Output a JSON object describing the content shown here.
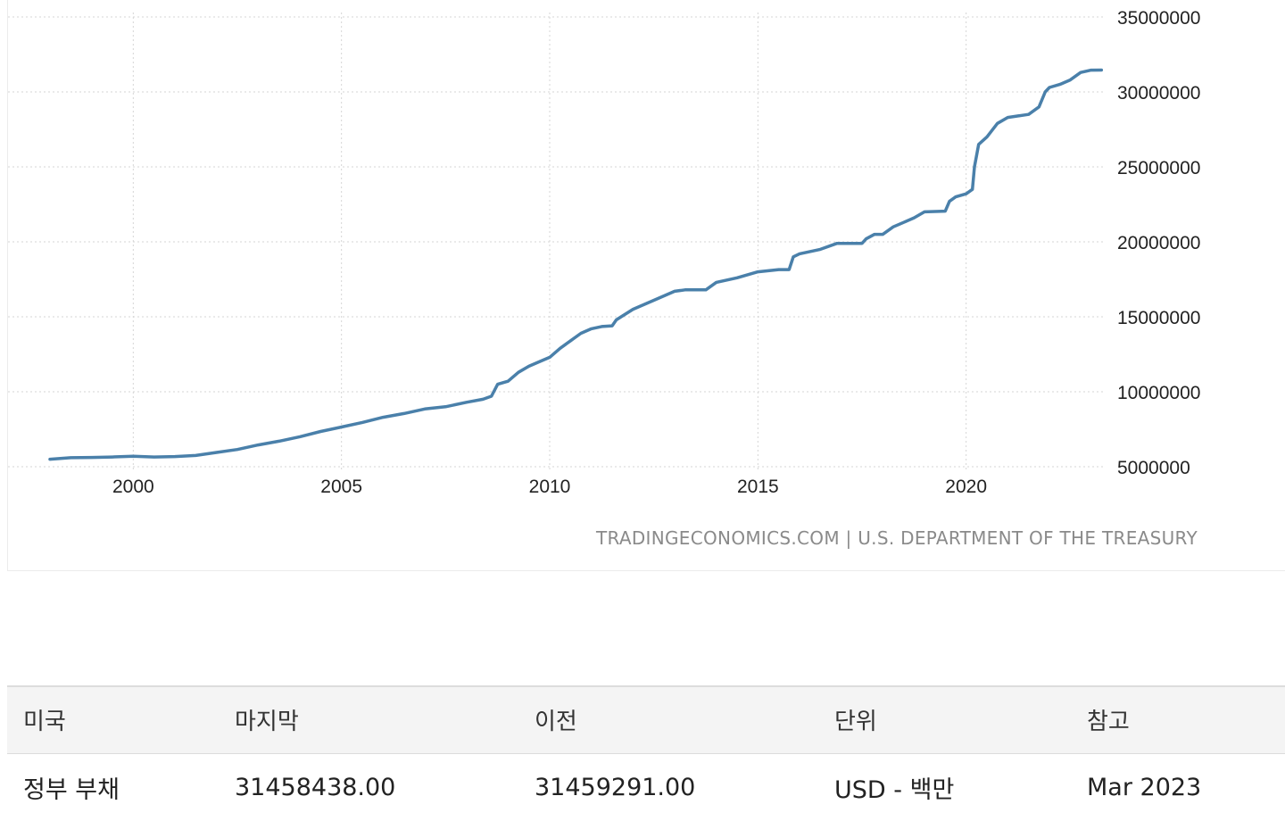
{
  "chart_data": {
    "type": "line",
    "series": [
      {
        "x": [
          1998.0,
          1998.5,
          1999.0,
          1999.5,
          2000.0,
          2000.5,
          2001.0,
          2001.5,
          2002.0,
          2002.5,
          2003.0,
          2003.5,
          2004.0,
          2004.5,
          2005.0,
          2005.5,
          2006.0,
          2006.5,
          2007.0,
          2007.5,
          2008.0,
          2008.4,
          2008.6,
          2008.75,
          2009.0,
          2009.25,
          2009.5,
          2009.75,
          2010.0,
          2010.25,
          2010.5,
          2010.75,
          2011.0,
          2011.25,
          2011.5,
          2011.6,
          2012.0,
          2012.5,
          2013.0,
          2013.25,
          2013.75,
          2014.0,
          2014.5,
          2015.0,
          2015.5,
          2015.75,
          2015.85,
          2016.0,
          2016.5,
          2016.9,
          2017.2,
          2017.5,
          2017.6,
          2017.8,
          2018.0,
          2018.25,
          2018.5,
          2018.75,
          2019.0,
          2019.5,
          2019.6,
          2019.75,
          2020.0,
          2020.15,
          2020.2,
          2020.3,
          2020.5,
          2020.75,
          2021.0,
          2021.25,
          2021.5,
          2021.75,
          2021.9,
          2022.0,
          2022.25,
          2022.5,
          2022.75,
          2023.0,
          2023.25
        ],
        "values": [
          5500000,
          5600000,
          5620000,
          5650000,
          5700000,
          5650000,
          5680000,
          5750000,
          5950000,
          6150000,
          6450000,
          6700000,
          7000000,
          7350000,
          7650000,
          7950000,
          8300000,
          8550000,
          8850000,
          9000000,
          9300000,
          9500000,
          9700000,
          10500000,
          10700000,
          11300000,
          11700000,
          12000000,
          12300000,
          12900000,
          13400000,
          13900000,
          14200000,
          14350000,
          14400000,
          14800000,
          15500000,
          16100000,
          16700000,
          16800000,
          16800000,
          17300000,
          17600000,
          18000000,
          18150000,
          18150000,
          19000000,
          19200000,
          19500000,
          19900000,
          19900000,
          19900000,
          20200000,
          20500000,
          20500000,
          21000000,
          21300000,
          21600000,
          22000000,
          22050000,
          22700000,
          23000000,
          23200000,
          23500000,
          25000000,
          26500000,
          27000000,
          27900000,
          28300000,
          28400000,
          28500000,
          29000000,
          30000000,
          30300000,
          30500000,
          30800000,
          31300000,
          31450000,
          31460000
        ]
      }
    ],
    "xticks": [
      "2000",
      "2005",
      "2010",
      "2015",
      "2020"
    ],
    "yticks": [
      "5000000",
      "10000000",
      "15000000",
      "20000000",
      "25000000",
      "30000000",
      "35000000"
    ],
    "ylim": [
      5000000,
      35000000
    ],
    "xlim": [
      1998,
      2023.5
    ],
    "grid": "dotted",
    "line_color": "#4a80aa"
  },
  "source_text": "TRADINGECONOMICS.COM | U.S. DEPARTMENT OF THE TREASURY",
  "table": {
    "headers": [
      "미국",
      "마지막",
      "이전",
      "단위",
      "참고"
    ],
    "row": [
      "정부 부채",
      "31458438.00",
      "31459291.00",
      "USD - 백만",
      "Mar 2023"
    ]
  }
}
